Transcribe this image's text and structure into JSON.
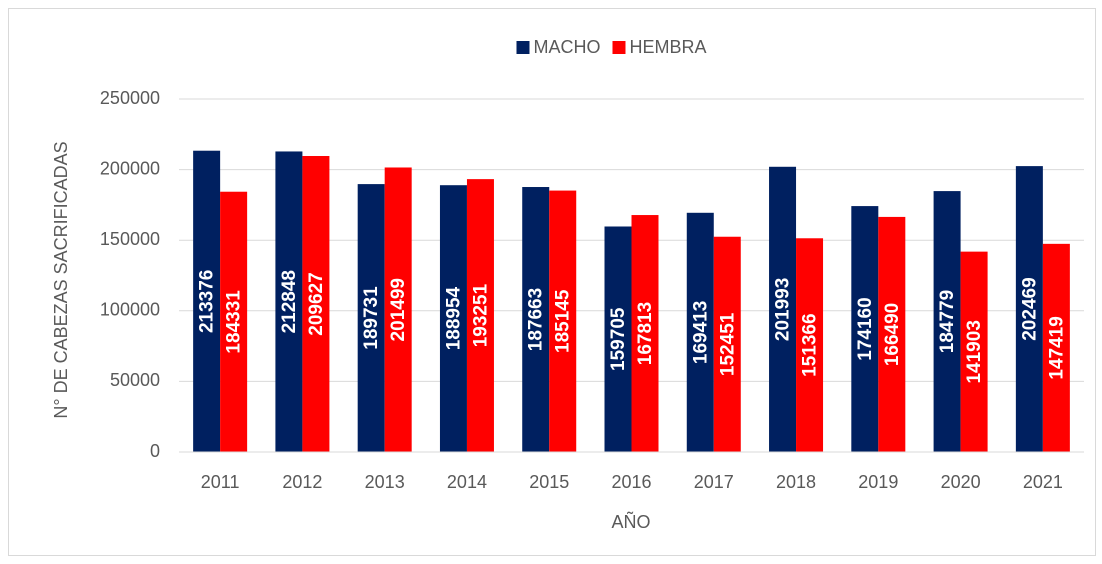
{
  "chart_data": {
    "type": "bar",
    "x_label": "AÑO",
    "y_label": "N° DE CABEZAS SACRIFICADAS",
    "categories": [
      "2011",
      "2012",
      "2013",
      "2014",
      "2015",
      "2016",
      "2017",
      "2018",
      "2019",
      "2020",
      "2021"
    ],
    "series": [
      {
        "name": "MACHO",
        "color": "#002060",
        "values": [
          213376,
          212848,
          189731,
          188954,
          187663,
          159705,
          169413,
          201993,
          174160,
          184779,
          202469
        ]
      },
      {
        "name": "HEMBRA",
        "color": "#ff0000",
        "values": [
          184331,
          209627,
          201499,
          193251,
          185145,
          167813,
          152451,
          151366,
          166490,
          141903,
          147419
        ]
      }
    ],
    "ylim": [
      0,
      250000
    ],
    "yticks": [
      0,
      50000,
      100000,
      150000,
      200000,
      250000
    ],
    "grid": true,
    "legend": "top",
    "data_labels": true
  }
}
